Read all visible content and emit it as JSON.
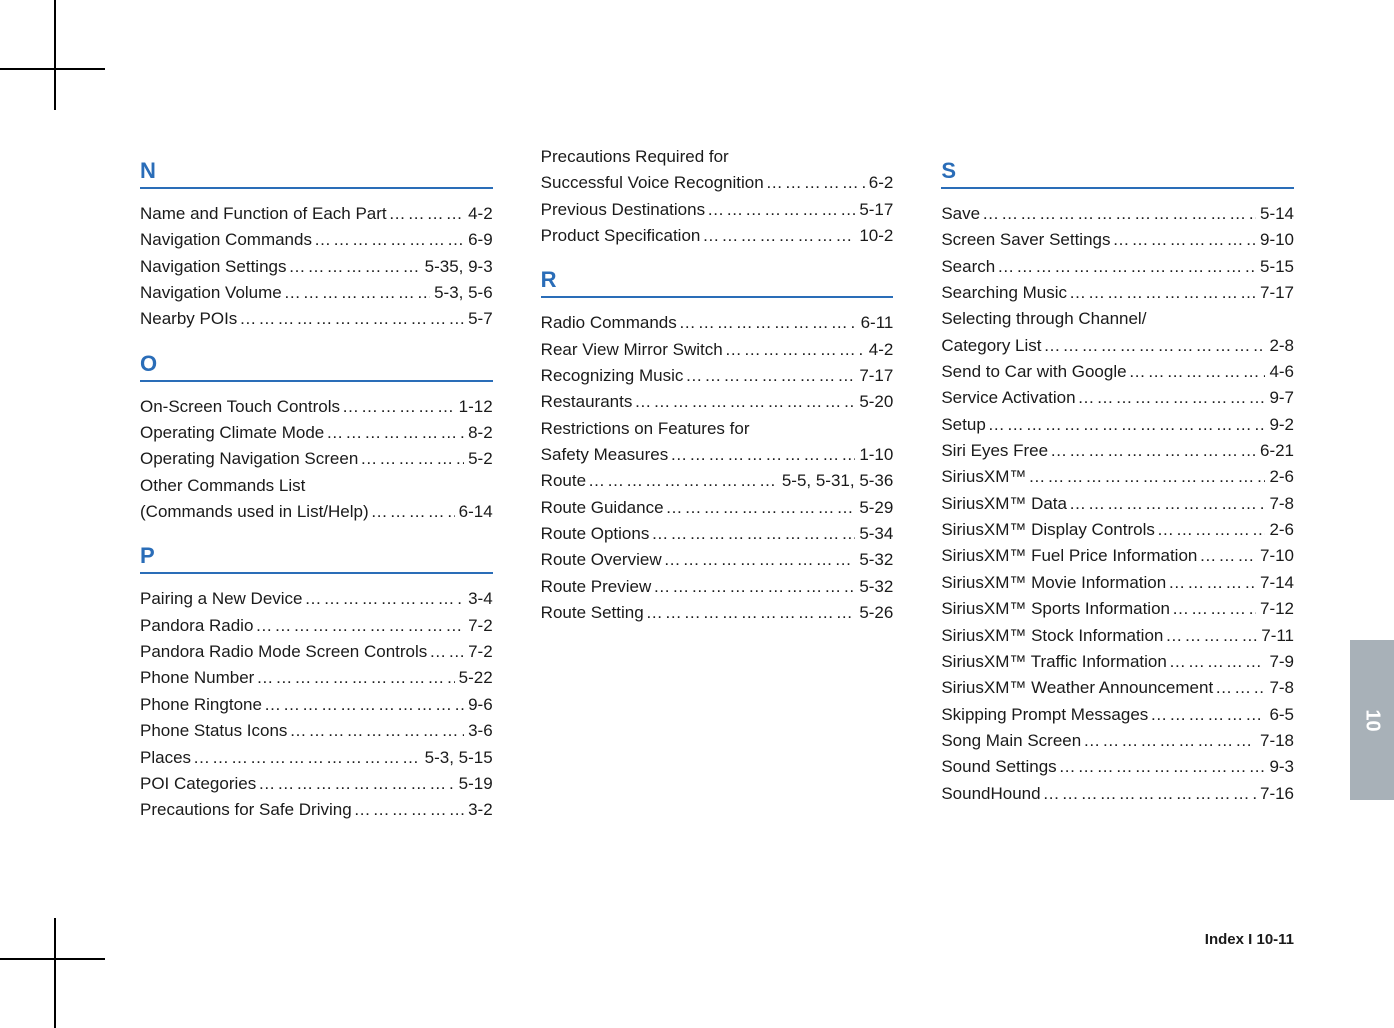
{
  "side_tab": "10",
  "footer": "Index I 10-11",
  "columns": [
    {
      "sections": [
        {
          "letter": "N",
          "entries": [
            {
              "label": "Name and Function of Each Part",
              "page": "4-2"
            },
            {
              "label": "Navigation Commands",
              "page": "6-9"
            },
            {
              "label": "Navigation Settings",
              "page": "5-35, 9-3"
            },
            {
              "label": "Navigation Volume",
              "page": "5-3, 5-6"
            },
            {
              "label": "Nearby POIs",
              "page": "5-7"
            }
          ]
        },
        {
          "letter": "O",
          "entries": [
            {
              "label": "On-Screen Touch Controls",
              "page": "1-12"
            },
            {
              "label": "Operating Climate Mode",
              "page": "8-2"
            },
            {
              "label": "Operating Navigation Screen",
              "page": "5-2"
            },
            {
              "label": "Other Commands List",
              "label2": "(Commands used in List/Help)",
              "page": "6-14"
            }
          ]
        },
        {
          "letter": "P",
          "entries": [
            {
              "label": "Pairing a New Device",
              "page": "3-4"
            },
            {
              "label": "Pandora Radio",
              "page": "7-2"
            },
            {
              "label": "Pandora Radio Mode Screen Controls",
              "page": "7-2"
            },
            {
              "label": "Phone Number",
              "page": "5-22"
            },
            {
              "label": "Phone Ringtone",
              "page": "9-6"
            },
            {
              "label": "Phone Status Icons",
              "page": "3-6"
            },
            {
              "label": "Places",
              "page": "5-3, 5-15"
            },
            {
              "label": "POI Categories",
              "page": "5-19"
            },
            {
              "label": "Precautions for Safe Driving",
              "page": "3-2"
            }
          ]
        }
      ]
    },
    {
      "sections": [
        {
          "letter": "",
          "entries": [
            {
              "label": "Precautions Required for",
              "label2": "Successful Voice Recognition",
              "page": "6-2"
            },
            {
              "label": "Previous Destinations",
              "page": "5-17"
            },
            {
              "label": "Product Specification",
              "page": "10-2"
            }
          ]
        },
        {
          "letter": "R",
          "entries": [
            {
              "label": "Radio Commands",
              "page": "6-11"
            },
            {
              "label": "Rear View Mirror Switch",
              "page": "4-2"
            },
            {
              "label": "Recognizing Music",
              "page": "7-17"
            },
            {
              "label": "Restaurants",
              "page": "5-20"
            },
            {
              "label": "Restrictions on Features for",
              "label2": "Safety Measures",
              "page": "1-10"
            },
            {
              "label": "Route",
              "page": "5-5, 5-31, 5-36"
            },
            {
              "label": "Route Guidance",
              "page": "5-29"
            },
            {
              "label": "Route Options",
              "page": "5-34"
            },
            {
              "label": "Route Overview",
              "page": "5-32"
            },
            {
              "label": "Route Preview",
              "page": "5-32"
            },
            {
              "label": "Route Setting",
              "page": "5-26"
            }
          ]
        }
      ]
    },
    {
      "sections": [
        {
          "letter": "S",
          "entries": [
            {
              "label": "Save",
              "page": "5-14"
            },
            {
              "label": "Screen Saver Settings",
              "page": "9-10"
            },
            {
              "label": "Search",
              "page": "5-15"
            },
            {
              "label": "Searching Music",
              "page": "7-17"
            },
            {
              "label": "Selecting through Channel/",
              "label2": "Category List",
              "page": "2-8"
            },
            {
              "label": "Send to Car with Google",
              "page": "4-6"
            },
            {
              "label": "Service Activation",
              "page": "9-7"
            },
            {
              "label": "Setup",
              "page": "9-2"
            },
            {
              "label": "Siri Eyes Free",
              "page": "6-21"
            },
            {
              "label": "SiriusXM™",
              "page": "2-6"
            },
            {
              "label": "SiriusXM™ Data",
              "page": "7-8"
            },
            {
              "label": "SiriusXM™ Display Controls",
              "page": "2-6"
            },
            {
              "label": "SiriusXM™ Fuel Price Information",
              "page": "7-10"
            },
            {
              "label": "SiriusXM™ Movie Information",
              "page": "7-14"
            },
            {
              "label": "SiriusXM™ Sports Information",
              "page": "7-12"
            },
            {
              "label": "SiriusXM™ Stock Information",
              "page": "7-11"
            },
            {
              "label": "SiriusXM™ Traffic Information",
              "page": "7-9"
            },
            {
              "label": "SiriusXM™ Weather Announcement",
              "page": "7-8"
            },
            {
              "label": "Skipping Prompt Messages",
              "page": "6-5"
            },
            {
              "label": "Song Main Screen",
              "page": "7-18"
            },
            {
              "label": "Sound Settings",
              "page": "9-3"
            },
            {
              "label": "SoundHound",
              "page": "7-16"
            }
          ]
        }
      ]
    }
  ]
}
